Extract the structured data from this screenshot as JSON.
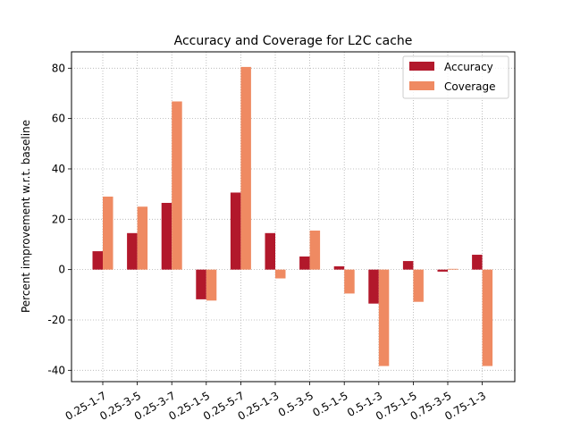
{
  "chart_data": {
    "type": "bar",
    "title": "Accuracy and Coverage for L2C cache",
    "xlabel": "",
    "ylabel": "Percent improvement w.r.t. baseline",
    "categories": [
      "0.25-1-7",
      "0.25-3-5",
      "0.25-3-7",
      "0.25-1-5",
      "0.25-5-7",
      "0.25-1-3",
      "0.5-3-5",
      "0.5-1-5",
      "0.5-1-3",
      "0.75-1-5",
      "0.75-3-5",
      "0.75-1-3"
    ],
    "series": [
      {
        "name": "Accuracy",
        "color": "#b2182b",
        "values": [
          7.3,
          14.5,
          26.5,
          -11.8,
          30.6,
          14.5,
          5.2,
          1.3,
          -13.5,
          3.4,
          -0.8,
          5.9
        ]
      },
      {
        "name": "Coverage",
        "color": "#ef8a62",
        "values": [
          29.0,
          25.0,
          66.8,
          -12.3,
          80.5,
          -3.5,
          15.5,
          -9.5,
          -38.3,
          -12.8,
          0.3,
          -38.3
        ]
      }
    ],
    "ylim": [
      -44.5,
      86.5
    ],
    "yticks": [
      -40,
      -20,
      0,
      20,
      40,
      60,
      80
    ],
    "grid": true,
    "legend": "top-right"
  }
}
